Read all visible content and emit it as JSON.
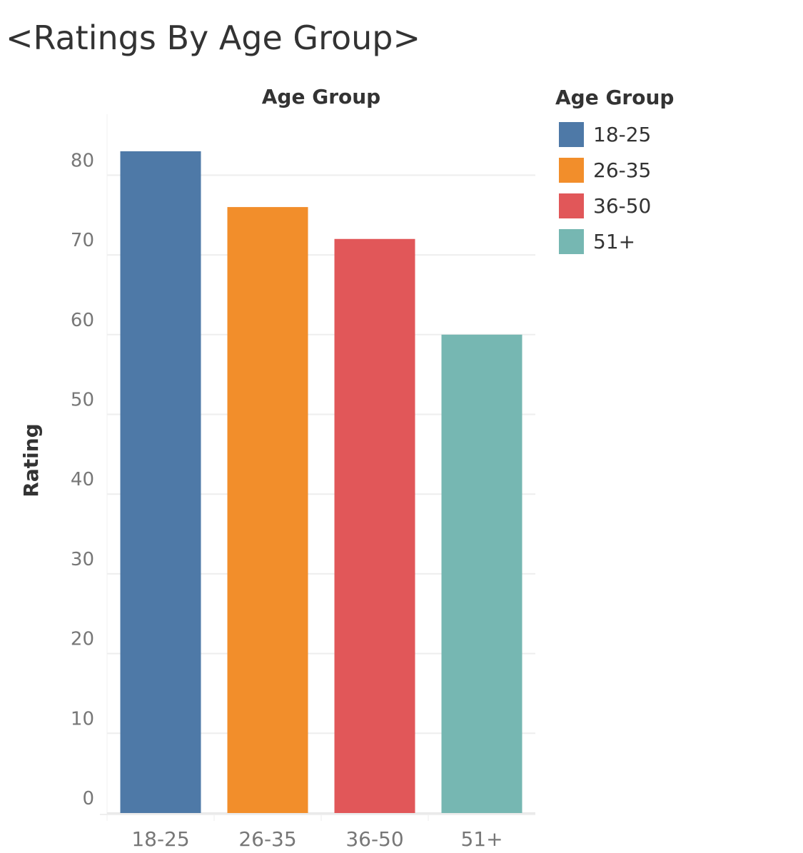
{
  "title": "<Ratings By Age Group>",
  "legend": {
    "title": "Age Group",
    "items": [
      {
        "label": "18-25",
        "color": "#4e79a7"
      },
      {
        "label": "26-35",
        "color": "#f28e2b"
      },
      {
        "label": "36-50",
        "color": "#e15759"
      },
      {
        "label": "51+",
        "color": "#76b7b2"
      }
    ]
  },
  "chart_data": {
    "type": "bar",
    "title": "<Ratings By Age Group>",
    "xlabel": "Age Group",
    "ylabel": "Rating",
    "categories": [
      "18-25",
      "26-35",
      "36-50",
      "51+"
    ],
    "values": [
      83,
      76,
      72,
      60
    ],
    "colors": [
      "#4e79a7",
      "#f28e2b",
      "#e15759",
      "#76b7b2"
    ],
    "ylim": [
      0,
      90
    ],
    "yticks": [
      0,
      10,
      20,
      30,
      40,
      50,
      60,
      70,
      80
    ],
    "grid": true,
    "legend_position": "top-right"
  }
}
